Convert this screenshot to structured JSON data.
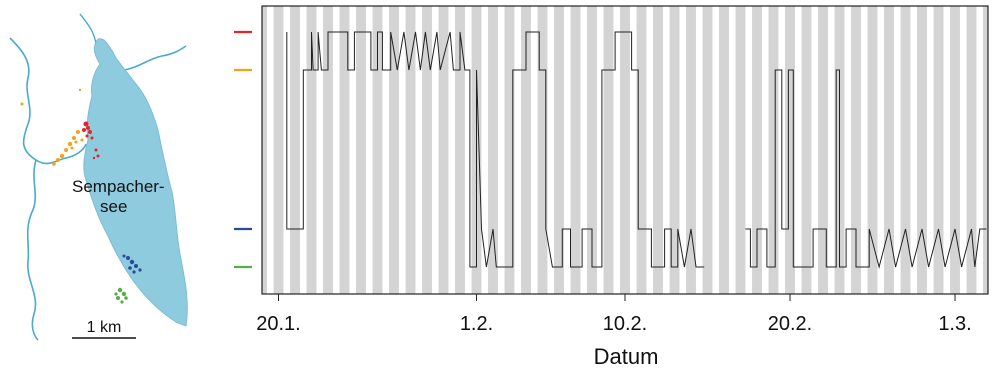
{
  "map": {
    "lake_label": "Sempacher-\nsee",
    "scale_label": "1 km",
    "colors": {
      "lake": "#8ecbdf",
      "river": "#4aa9d2",
      "red": "#e8232a",
      "orange": "#f3a21c",
      "blue": "#2a4a9b",
      "green": "#5aab4a"
    }
  },
  "chart_data": {
    "type": "line",
    "title": "",
    "xlabel": "Datum",
    "ylabel": "",
    "x_ticks": [
      {
        "label": "20.1.",
        "day": 0
      },
      {
        "label": "1.2.",
        "day": 12
      },
      {
        "label": "10.2.",
        "day": 21
      },
      {
        "label": "20.2.",
        "day": 31
      },
      {
        "label": "1.3.",
        "day": 41
      }
    ],
    "xlim_days": [
      -1,
      43
    ],
    "night_bands": "one grey band per night, alternating with white day columns",
    "zones": [
      {
        "name": "red",
        "color": "#e8232a",
        "level": 4
      },
      {
        "name": "orange",
        "color": "#f3a21c",
        "level": 3
      },
      {
        "name": "blue",
        "color": "#2a4a9b",
        "level": 1
      },
      {
        "name": "green",
        "color": "#5aab4a",
        "level": 0
      }
    ],
    "series": [
      {
        "color": "#222222",
        "points": [
          [
            0.5,
            4
          ],
          [
            0.5,
            1
          ],
          [
            1.5,
            1
          ],
          [
            1.5,
            3
          ],
          [
            2.0,
            3
          ],
          [
            2.0,
            4
          ],
          [
            2.1,
            3
          ],
          [
            2.4,
            3
          ],
          [
            2.4,
            4
          ],
          [
            2.6,
            3
          ],
          [
            3.0,
            3
          ],
          [
            3.0,
            4
          ],
          [
            4.2,
            4
          ],
          [
            4.2,
            3
          ],
          [
            4.6,
            3
          ],
          [
            4.6,
            4
          ],
          [
            5.6,
            4
          ],
          [
            5.6,
            3
          ],
          [
            6.0,
            3
          ],
          [
            6.0,
            4
          ],
          [
            6.3,
            4
          ],
          [
            6.3,
            3
          ],
          [
            6.8,
            3
          ],
          [
            6.8,
            4
          ],
          [
            7.2,
            3
          ],
          [
            7.6,
            4
          ],
          [
            7.9,
            3
          ],
          [
            8.3,
            4
          ],
          [
            8.6,
            3
          ],
          [
            8.9,
            4
          ],
          [
            9.2,
            3
          ],
          [
            9.6,
            4
          ],
          [
            9.8,
            3
          ],
          [
            10.4,
            4
          ],
          [
            10.6,
            3
          ],
          [
            11.0,
            3
          ],
          [
            11.0,
            4
          ],
          [
            11.3,
            3
          ],
          [
            11.6,
            3
          ],
          [
            11.6,
            0
          ],
          [
            12.0,
            0
          ],
          [
            12.0,
            3
          ],
          [
            12.3,
            1
          ],
          [
            12.6,
            0
          ],
          [
            13.0,
            1
          ],
          [
            13.2,
            0
          ],
          [
            14.2,
            0
          ],
          [
            14.2,
            3
          ],
          [
            15.0,
            3
          ],
          [
            15.0,
            4
          ],
          [
            15.8,
            4
          ],
          [
            15.8,
            3
          ],
          [
            16.2,
            3
          ],
          [
            16.2,
            1
          ],
          [
            16.6,
            0
          ],
          [
            17.2,
            0
          ],
          [
            17.2,
            1
          ],
          [
            17.7,
            1
          ],
          [
            17.7,
            0
          ],
          [
            18.4,
            0
          ],
          [
            18.4,
            1
          ],
          [
            19.0,
            1
          ],
          [
            19.0,
            0
          ],
          [
            19.6,
            0
          ],
          [
            19.6,
            3
          ],
          [
            20.4,
            3
          ],
          [
            20.4,
            4
          ],
          [
            21.4,
            4
          ],
          [
            21.4,
            3
          ],
          [
            21.8,
            3
          ],
          [
            21.8,
            1
          ],
          [
            22.6,
            1
          ],
          [
            22.6,
            0
          ],
          [
            23.4,
            0
          ],
          [
            23.4,
            1
          ],
          [
            23.8,
            1
          ],
          [
            23.8,
            0
          ],
          [
            24.2,
            0
          ],
          [
            24.2,
            1
          ],
          [
            24.6,
            0
          ],
          [
            25.0,
            1
          ],
          [
            25.3,
            0
          ],
          [
            25.8,
            0
          ]
        ]
      },
      {
        "color": "#222222",
        "points": [
          [
            28.3,
            1
          ],
          [
            28.6,
            1
          ],
          [
            28.6,
            0
          ],
          [
            29.0,
            0
          ],
          [
            29.0,
            1
          ],
          [
            29.6,
            1
          ],
          [
            29.6,
            0
          ],
          [
            30.1,
            0
          ],
          [
            30.1,
            3
          ],
          [
            30.5,
            3
          ],
          [
            30.5,
            1
          ],
          [
            30.9,
            1
          ],
          [
            30.9,
            3
          ],
          [
            31.2,
            3
          ],
          [
            31.2,
            0
          ],
          [
            32.4,
            0
          ],
          [
            32.4,
            1
          ],
          [
            33.2,
            1
          ],
          [
            33.2,
            0
          ],
          [
            33.8,
            0
          ],
          [
            33.8,
            3
          ],
          [
            34.0,
            3
          ],
          [
            34.0,
            0
          ],
          [
            34.4,
            0
          ],
          [
            34.4,
            1
          ],
          [
            35.0,
            1
          ],
          [
            35.0,
            0
          ],
          [
            35.8,
            0
          ],
          [
            35.8,
            1
          ],
          [
            36.4,
            0
          ],
          [
            37.0,
            1
          ],
          [
            37.4,
            0
          ],
          [
            38.0,
            1
          ],
          [
            38.4,
            0
          ],
          [
            39.0,
            1
          ],
          [
            39.4,
            0
          ],
          [
            40.0,
            1
          ],
          [
            40.4,
            0
          ],
          [
            41.0,
            1
          ],
          [
            41.4,
            0
          ],
          [
            42.0,
            1
          ],
          [
            42.2,
            0
          ],
          [
            42.5,
            1
          ],
          [
            42.9,
            1
          ]
        ]
      }
    ]
  }
}
